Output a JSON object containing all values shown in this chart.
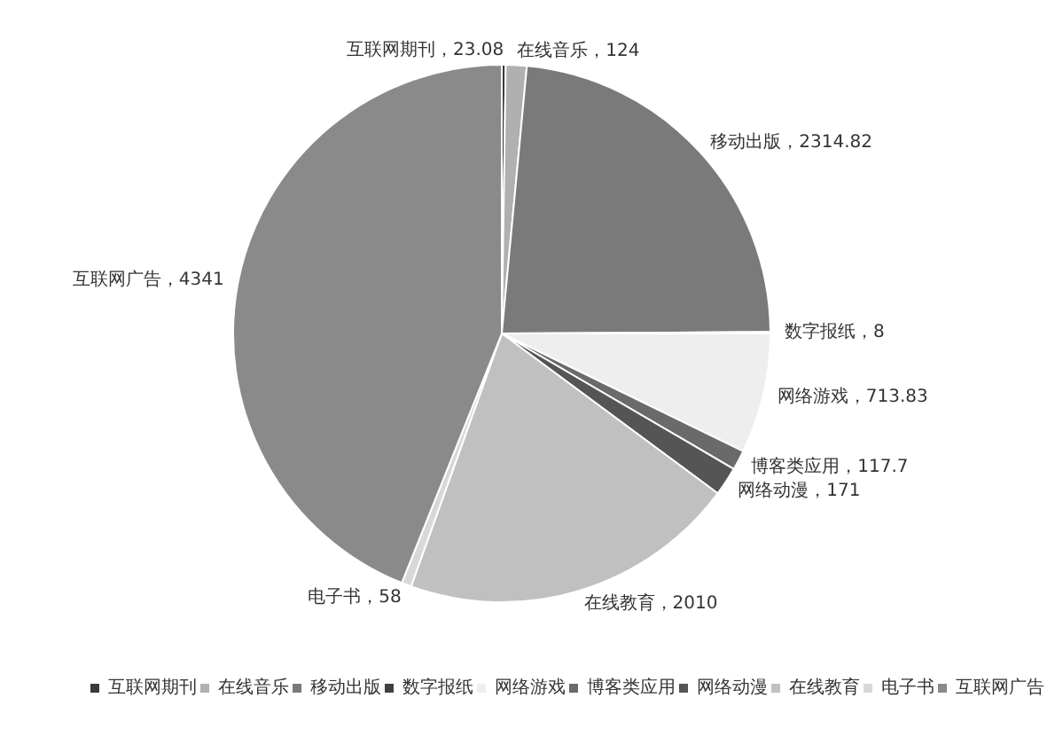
{
  "chart_data": {
    "type": "pie",
    "categories": [
      "互联网期刊",
      "在线音乐",
      "移动出版",
      "数字报纸",
      "网络游戏",
      "博客类应用",
      "网络动漫",
      "在线教育",
      "电子书",
      "互联网广告"
    ],
    "values": [
      23.08,
      124,
      2314.82,
      8,
      713.83,
      117.7,
      171,
      2010,
      58,
      4341
    ],
    "colors": [
      "#3a3a3a",
      "#b0b0b0",
      "#7a7a7a",
      "#404040",
      "#eeeeee",
      "#6a6a6a",
      "#555555",
      "#c0c0c0",
      "#d8d8d8",
      "#8a8a8a"
    ],
    "value_labels": [
      "互联网期刊，23.08",
      "在线音乐，124",
      "移动出版，2314.82",
      "数字报纸，8",
      "网络游戏，713.83",
      "博客类应用，117.7",
      "网络动漫，171",
      "在线教育，2010",
      "电子书，58",
      "互联网广告，4341"
    ],
    "legend": "bottom right"
  }
}
